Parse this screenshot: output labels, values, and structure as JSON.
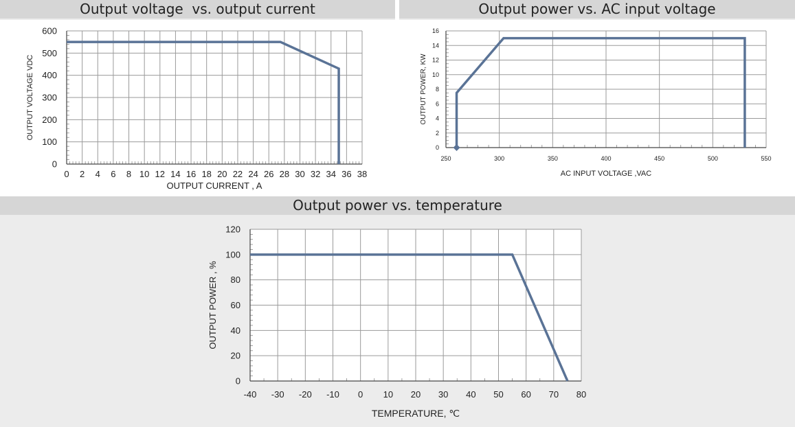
{
  "charts": [
    {
      "title": "Output voltage  vs. output current",
      "chart_data": {
        "type": "line",
        "xlabel": "OUTPUT CURRENT  , A",
        "ylabel": "OUTPUT VOLTAGE VDC",
        "xlim": [
          0,
          38
        ],
        "ylim": [
          0,
          600
        ],
        "x_ticks": [
          "0",
          "2",
          "4",
          "6",
          "8",
          "10",
          "12",
          "14",
          "16",
          "18",
          "20",
          "22",
          "24",
          "26",
          "28",
          "30",
          "32",
          "34",
          "36",
          "38"
        ],
        "y_ticks": [
          "0",
          "100",
          "200",
          "300",
          "400",
          "500",
          "600"
        ],
        "grid": true,
        "series": [
          {
            "x": [
              0,
              27.5,
              35,
              35
            ],
            "y": [
              550,
              550,
              430,
              0
            ]
          }
        ]
      }
    },
    {
      "title": "Output power vs. AC input voltage",
      "chart_data": {
        "type": "line",
        "xlabel": "AC INPUT VOLTAGE ,VAC",
        "ylabel": "OUTPUT POWER, KW",
        "xlim": [
          250,
          550
        ],
        "ylim": [
          0,
          16
        ],
        "x_ticks": [
          "250",
          "300",
          "350",
          "400",
          "450",
          "500",
          "550"
        ],
        "y_ticks": [
          "0",
          "2",
          "4",
          "6",
          "8",
          "10",
          "12",
          "14",
          "16"
        ],
        "grid": true,
        "series": [
          {
            "x": [
              260,
              260,
              304,
              530,
              530
            ],
            "y": [
              0,
              7.5,
              15,
              15,
              0
            ]
          }
        ]
      }
    },
    {
      "title": "Output power vs. temperature",
      "chart_data": {
        "type": "line",
        "xlabel": "TEMPERATURE, ℃",
        "ylabel": "OUTPUT POWER ,  %",
        "xlim": [
          -40,
          80
        ],
        "ylim": [
          0,
          120
        ],
        "x_ticks": [
          "-40",
          "-30",
          "-20",
          "-10",
          "0",
          "10",
          "20",
          "30",
          "40",
          "50",
          "60",
          "70",
          "80"
        ],
        "y_ticks": [
          "0",
          "20",
          "40",
          "60",
          "80",
          "100",
          "120"
        ],
        "grid": true,
        "series": [
          {
            "x": [
              -40,
              55,
              75
            ],
            "y": [
              100,
              100,
              0
            ]
          }
        ]
      }
    }
  ],
  "colors": {
    "line": "#5a7396",
    "grid": "#9a9a9a",
    "axis": "#444444"
  }
}
